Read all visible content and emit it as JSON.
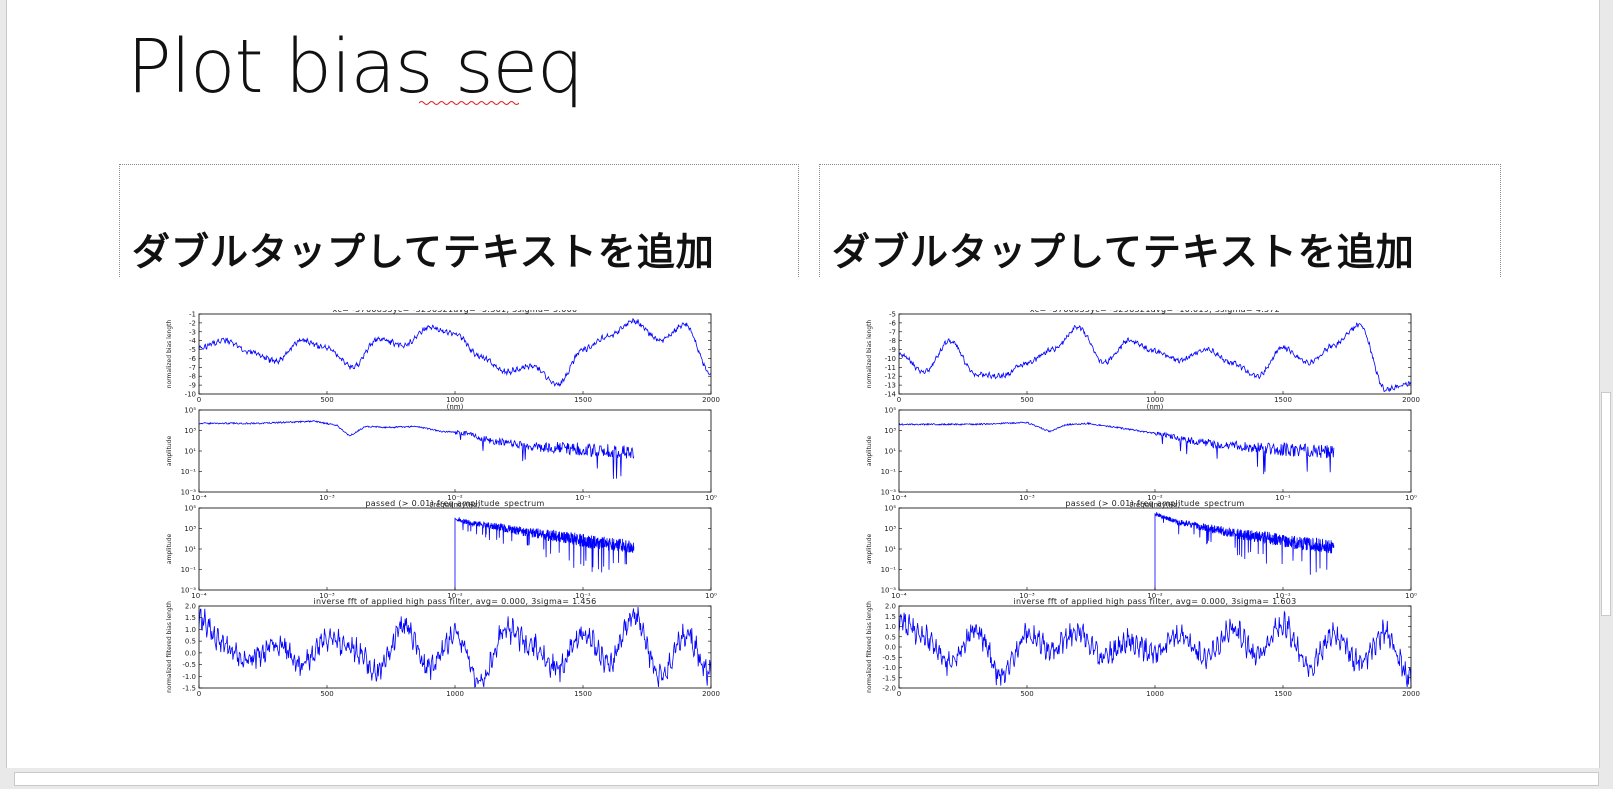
{
  "slide": {
    "title": "Plot bias seq",
    "placeholders": [
      {
        "text": "ダブルタップしてテキストを追加"
      },
      {
        "text": "ダブルタップしてテキストを追加"
      }
    ]
  },
  "figures": [
    {
      "panels": [
        {
          "title": "xc= -5760835yc= -3296321avg= -5.361, 3sigma= 5.000",
          "ylabel": "normalized bias length",
          "xlabel": "(nm)",
          "y_ticks": [
            "-1",
            "-2",
            "-3",
            "-4",
            "-5",
            "-6",
            "-7",
            "-8",
            "-9",
            "-10"
          ],
          "x_ticks": [
            "0",
            "500",
            "1000",
            "1500",
            "2000"
          ]
        },
        {
          "title": "",
          "ylabel": "amplitude",
          "xlabel": "Frequency(Hz)",
          "y_ticks": [
            "10⁵",
            "10³",
            "10¹",
            "10⁻¹",
            "10⁻³"
          ],
          "x_ticks": [
            "10⁻⁴",
            "10⁻³",
            "10⁻²",
            "10⁻¹",
            "10⁰"
          ]
        },
        {
          "title": "passed (> 0.01) freq amplitude_spectrum",
          "ylabel": "amplitude",
          "xlabel": "",
          "y_ticks": [
            "10⁵",
            "10³",
            "10¹",
            "10⁻¹",
            "10⁻³"
          ],
          "x_ticks": [
            "10⁻⁴",
            "10⁻³",
            "10⁻²",
            "10⁻¹",
            "10⁰"
          ]
        },
        {
          "title": "inverse fft of applied high pass filter, avg= 0.000, 3sigma= 1.456",
          "ylabel": "normalized filtered bias length",
          "xlabel": "",
          "y_ticks": [
            "2.0",
            "1.5",
            "1.0",
            "0.5",
            "0.0",
            "-0.5",
            "-1.0",
            "-1.5"
          ],
          "x_ticks": [
            "0",
            "500",
            "1000",
            "1500",
            "2000"
          ]
        }
      ]
    },
    {
      "panels": [
        {
          "title": "xc= -5760835yc= -3296321avg= -10.019, 3sigma= 4.572",
          "ylabel": "normalized bias length",
          "xlabel": "(nm)",
          "y_ticks": [
            "-5",
            "-6",
            "-7",
            "-8",
            "-9",
            "-10",
            "-11",
            "-12",
            "-13",
            "-14"
          ],
          "x_ticks": [
            "0",
            "500",
            "1000",
            "1500",
            "2000"
          ]
        },
        {
          "title": "",
          "ylabel": "amplitude",
          "xlabel": "Frequency(Hz)",
          "y_ticks": [
            "10⁵",
            "10³",
            "10¹",
            "10⁻¹",
            "10⁻³"
          ],
          "x_ticks": [
            "10⁻⁴",
            "10⁻³",
            "10⁻²",
            "10⁻¹",
            "10⁰"
          ]
        },
        {
          "title": "passed (> 0.01) freq amplitude_spectrum",
          "ylabel": "amplitude",
          "xlabel": "",
          "y_ticks": [
            "10⁵",
            "10³",
            "10¹",
            "10⁻¹",
            "10⁻³"
          ],
          "x_ticks": [
            "10⁻⁴",
            "10⁻³",
            "10⁻²",
            "10⁻¹",
            "10⁰"
          ]
        },
        {
          "title": "inverse fft of applied high pass filter, avg= 0.000, 3sigma= 1.603",
          "ylabel": "normalized filtered bias length",
          "xlabel": "",
          "y_ticks": [
            "2.0",
            "1.5",
            "1.0",
            "0.5",
            "0.0",
            "-0.5",
            "-1.0",
            "-1.5",
            "-2.0"
          ],
          "x_ticks": [
            "0",
            "500",
            "1000",
            "1500",
            "2000"
          ]
        }
      ]
    }
  ],
  "colors": {
    "line": "#0000ff",
    "axis": "#000000"
  },
  "chart_data": [
    {
      "type": "line",
      "title": "xc= -5760835yc= -3296321avg= -5.361, 3sigma= 5.000",
      "xlabel": "(nm)",
      "ylabel": "normalized bias length",
      "xlim": [
        0,
        2000
      ],
      "ylim": [
        -10,
        -1
      ],
      "x": [
        0,
        100,
        200,
        300,
        400,
        500,
        600,
        700,
        800,
        900,
        1000,
        1100,
        1200,
        1300,
        1400,
        1500,
        1600,
        1700,
        1800,
        1900,
        2000
      ],
      "series": [
        {
          "values": [
            -4.8,
            -4.0,
            -5.2,
            -6.3,
            -4.0,
            -4.8,
            -7.0,
            -3.8,
            -4.5,
            -2.5,
            -3.2,
            -5.8,
            -7.5,
            -6.8,
            -9.0,
            -5.0,
            -3.5,
            -1.8,
            -4.0,
            -2.2,
            -7.8
          ]
        }
      ]
    },
    {
      "type": "line",
      "xlabel": "Frequency(Hz)",
      "ylabel": "amplitude",
      "xscale": "log",
      "yscale": "log",
      "xlim": [
        0.0001,
        1
      ],
      "ylim": [
        0.001,
        100000
      ],
      "x": [
        0.0001,
        0.0003,
        0.0008,
        0.0012,
        0.0015,
        0.002,
        0.003,
        0.005,
        0.008,
        0.012,
        0.02,
        0.05,
        0.1,
        0.15,
        0.25
      ],
      "series": [
        {
          "values": [
            5000,
            5000,
            8000,
            3000,
            300,
            2500,
            2000,
            2500,
            800,
            600,
            100,
            30,
            20,
            15,
            10
          ]
        }
      ]
    },
    {
      "type": "line",
      "title": "passed (> 0.01) freq amplitude_spectrum",
      "ylabel": "amplitude",
      "xscale": "log",
      "yscale": "log",
      "xlim": [
        0.0001,
        1
      ],
      "ylim": [
        0.001,
        100000
      ],
      "x": [
        0.01,
        0.0105,
        0.012,
        0.015,
        0.02,
        0.03,
        0.05,
        0.08,
        0.12,
        0.2,
        0.25
      ],
      "series": [
        {
          "values": [
            0.001,
            10000,
            5000,
            3000,
            2000,
            800,
            300,
            150,
            60,
            30,
            20
          ]
        }
      ]
    },
    {
      "type": "line",
      "title": "inverse fft of applied high pass filter, avg= 0.000, 3sigma= 1.456",
      "ylabel": "normalized filtered bias length",
      "xlim": [
        0,
        2000
      ],
      "ylim": [
        -1.5,
        2.0
      ],
      "x": [
        0,
        100,
        200,
        300,
        400,
        500,
        600,
        700,
        800,
        900,
        1000,
        1100,
        1200,
        1300,
        1400,
        1500,
        1600,
        1700,
        1800,
        1900,
        2000
      ],
      "series": [
        {
          "values": [
            1.5,
            0.3,
            -0.3,
            0.4,
            -0.5,
            0.6,
            0.2,
            -0.8,
            1.2,
            -0.6,
            0.8,
            -1.2,
            1.0,
            0.3,
            -0.7,
            0.9,
            -0.4,
            1.6,
            -1.0,
            0.8,
            -0.9
          ]
        }
      ]
    },
    {
      "type": "line",
      "title": "xc= -5760835yc= -3296321avg= -10.019, 3sigma= 4.572",
      "xlabel": "(nm)",
      "ylabel": "normalized bias length",
      "xlim": [
        0,
        2000
      ],
      "ylim": [
        -14,
        -5
      ],
      "x": [
        0,
        100,
        200,
        300,
        400,
        500,
        600,
        700,
        800,
        900,
        1000,
        1100,
        1200,
        1300,
        1400,
        1500,
        1600,
        1700,
        1800,
        1900,
        2000
      ],
      "series": [
        {
          "values": [
            -9.5,
            -11.5,
            -8.0,
            -11.8,
            -12.0,
            -10.5,
            -9.0,
            -6.5,
            -10.5,
            -8.0,
            -9.2,
            -10.2,
            -9.0,
            -10.5,
            -12.0,
            -8.8,
            -10.5,
            -8.5,
            -6.2,
            -13.5,
            -12.8
          ]
        }
      ]
    },
    {
      "type": "line",
      "xlabel": "Frequency(Hz)",
      "ylabel": "amplitude",
      "xscale": "log",
      "yscale": "log",
      "xlim": [
        0.0001,
        1
      ],
      "ylim": [
        0.001,
        100000
      ],
      "x": [
        0.0001,
        0.0004,
        0.001,
        0.0015,
        0.002,
        0.003,
        0.005,
        0.008,
        0.012,
        0.02,
        0.05,
        0.1,
        0.15,
        0.25
      ],
      "series": [
        {
          "values": [
            4000,
            4000,
            6000,
            800,
            3500,
            5000,
            2000,
            800,
            400,
            100,
            30,
            20,
            15,
            10
          ]
        }
      ]
    },
    {
      "type": "line",
      "title": "passed (> 0.01) freq amplitude_spectrum",
      "ylabel": "amplitude",
      "xscale": "log",
      "yscale": "log",
      "xlim": [
        0.0001,
        1
      ],
      "ylim": [
        0.001,
        100000
      ],
      "x": [
        0.01,
        0.0102,
        0.011,
        0.015,
        0.02,
        0.03,
        0.05,
        0.08,
        0.12,
        0.2,
        0.25
      ],
      "series": [
        {
          "values": [
            0.001,
            30000,
            20000,
            5000,
            2500,
            900,
            300,
            150,
            60,
            30,
            20
          ]
        }
      ]
    },
    {
      "type": "line",
      "title": "inverse fft of applied high pass filter, avg= 0.000, 3sigma= 1.603",
      "ylabel": "normalized filtered bias length",
      "xlim": [
        0,
        2000
      ],
      "ylim": [
        -2.0,
        2.0
      ],
      "x": [
        0,
        100,
        200,
        300,
        400,
        500,
        600,
        700,
        800,
        900,
        1000,
        1100,
        1200,
        1300,
        1400,
        1500,
        1600,
        1700,
        1800,
        1900,
        2000
      ],
      "series": [
        {
          "values": [
            1.2,
            0.5,
            -0.8,
            0.9,
            -1.4,
            0.6,
            -0.2,
            0.8,
            -0.5,
            0.3,
            -0.3,
            0.5,
            -0.6,
            0.9,
            -0.4,
            1.1,
            -1.0,
            0.6,
            -0.8,
            0.7,
            -1.6
          ]
        }
      ]
    }
  ]
}
